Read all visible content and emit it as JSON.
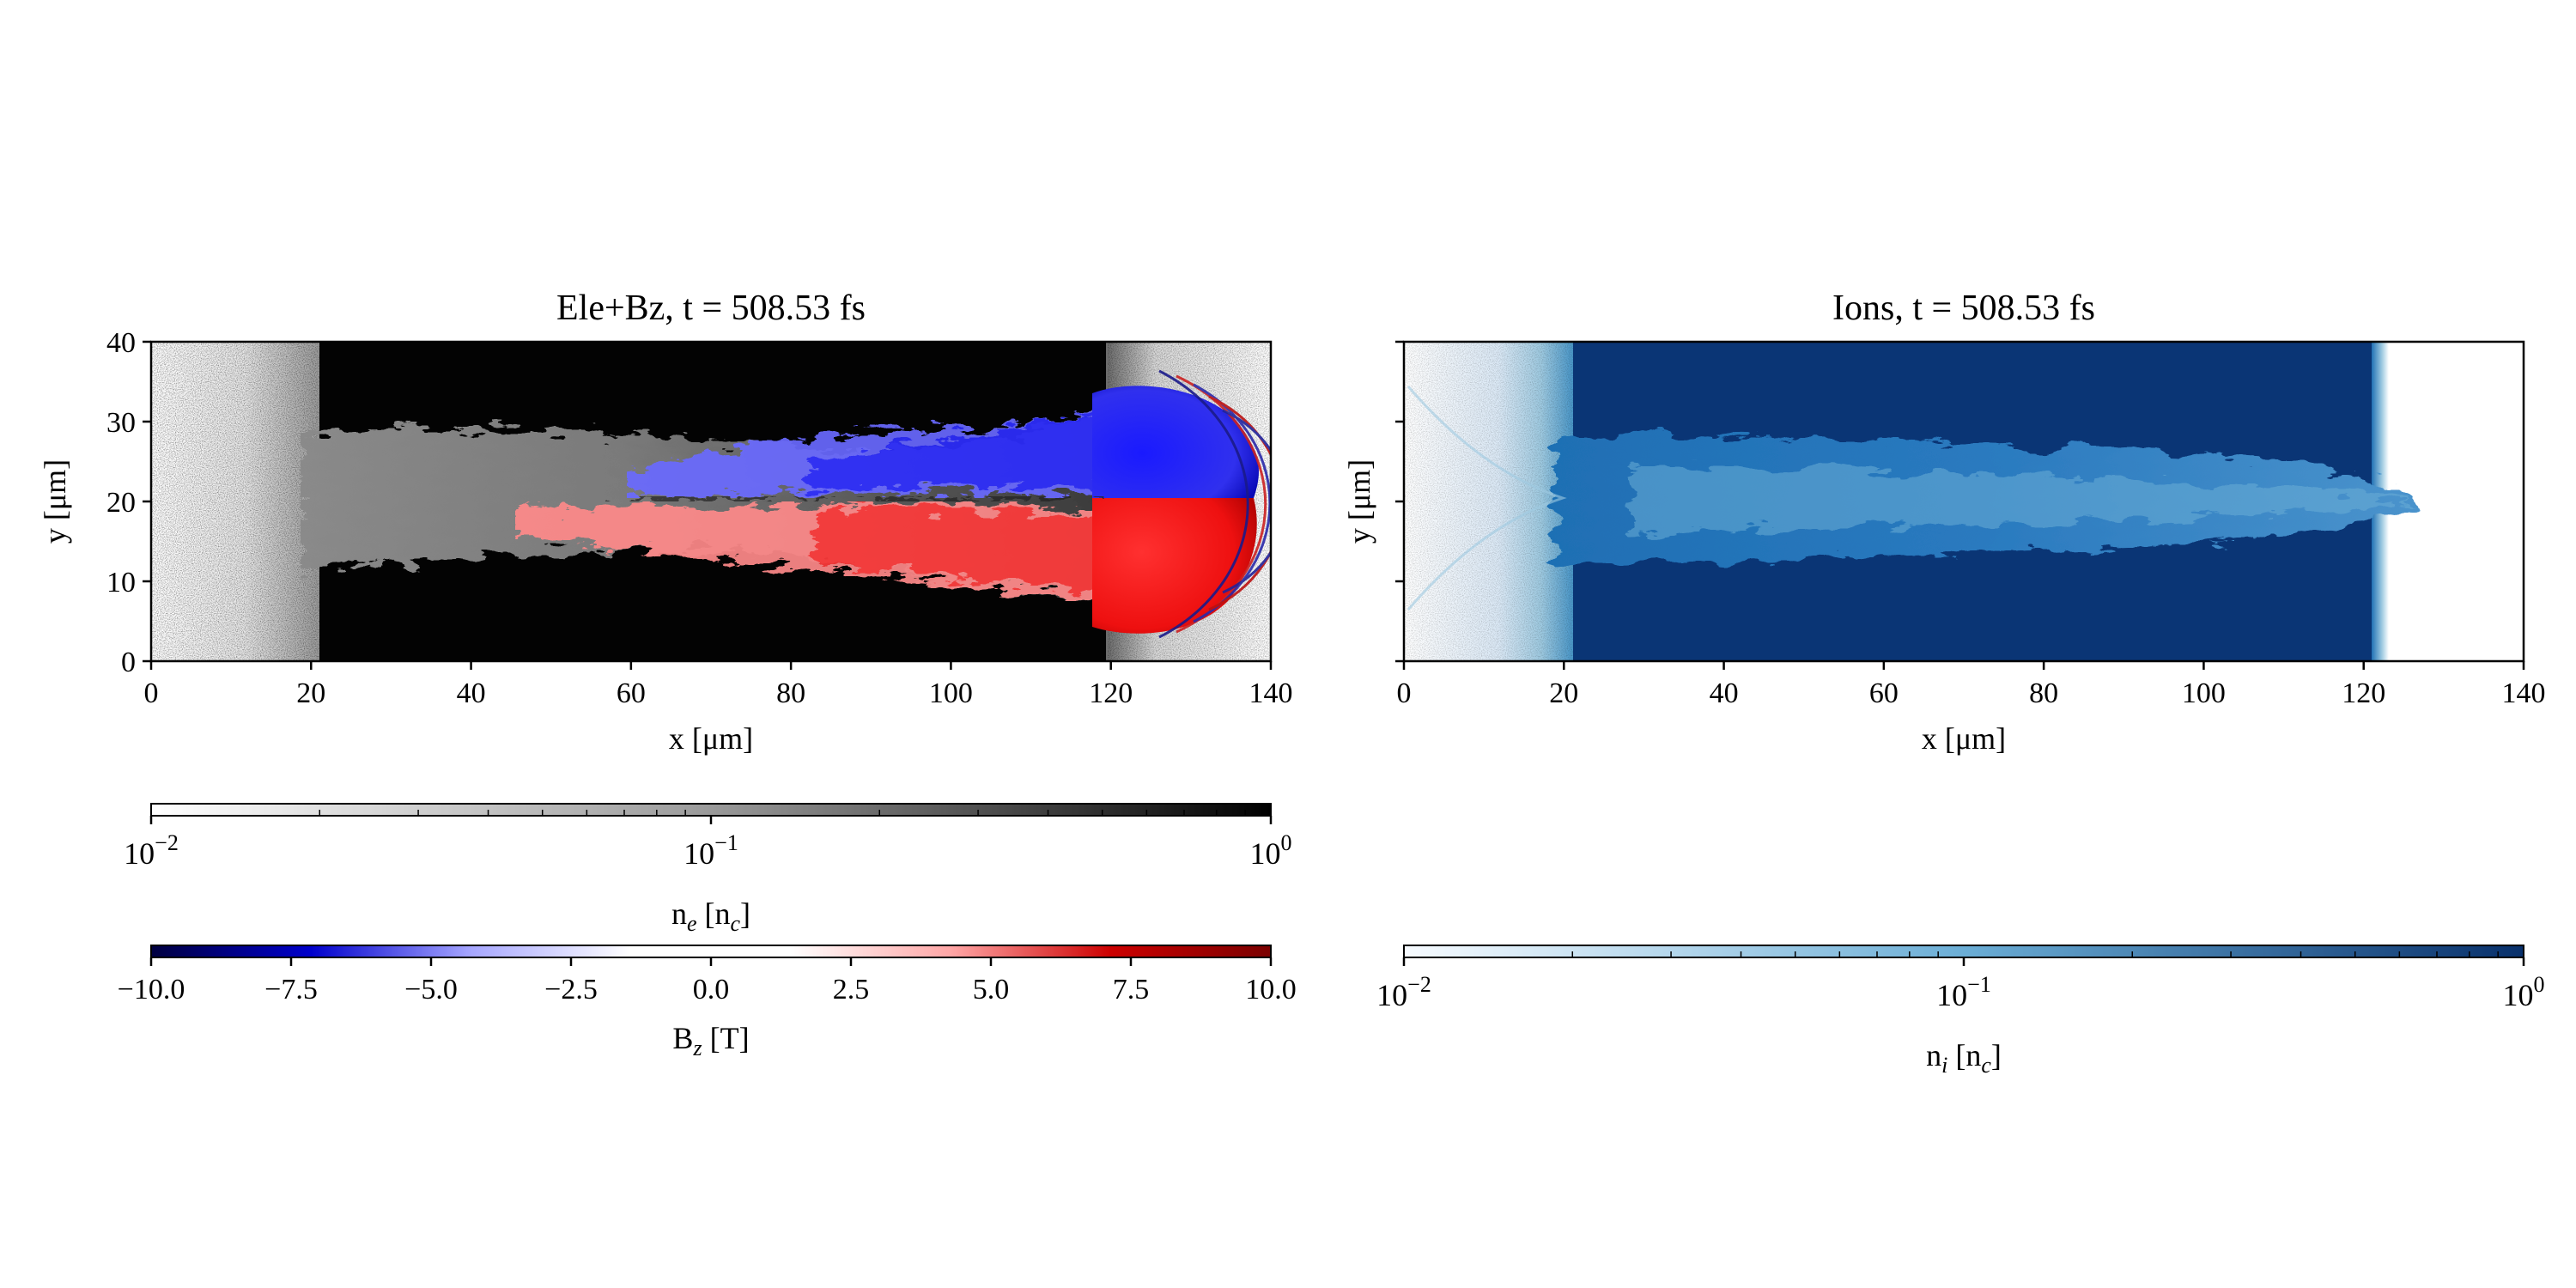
{
  "figure": {
    "panels": [
      {
        "id": "ele",
        "title": "Ele+Bz, t = 508.53 fs",
        "xlabel": "x [μm]",
        "ylabel": "y [μm]",
        "x_ticks": [
          "0",
          "20",
          "40",
          "60",
          "80",
          "100",
          "120",
          "140"
        ],
        "y_ticks": [
          "0",
          "10",
          "20",
          "30",
          "40"
        ],
        "show_y_tick_labels": true
      },
      {
        "id": "ions",
        "title": "Ions, t = 508.53 fs",
        "xlabel": "x [μm]",
        "ylabel": "y [μm]",
        "x_ticks": [
          "0",
          "20",
          "40",
          "60",
          "80",
          "100",
          "120",
          "140"
        ],
        "y_ticks": [
          "0",
          "10",
          "20",
          "30",
          "40"
        ],
        "show_y_tick_labels": false
      }
    ],
    "colorbars": [
      {
        "id": "ne",
        "label": "n_e [n_c]",
        "label_base": "n",
        "label_sub": "e",
        "label_unit_base": "n",
        "label_unit_sub": "c",
        "scale": "log",
        "range": [
          0.01,
          1
        ],
        "tick_labels": [
          "10−2",
          "10−1",
          "100"
        ],
        "colormap": [
          "#ffffff",
          "#9a9a9a",
          "#000000"
        ]
      },
      {
        "id": "bz",
        "label": "B_z [T]",
        "label_base": "B",
        "label_sub": "z",
        "label_unit": "T",
        "scale": "linear",
        "range": [
          -10,
          10
        ],
        "tick_labels": [
          "−10.0",
          "−7.5",
          "−5.0",
          "−2.5",
          "0.0",
          "2.5",
          "5.0",
          "7.5",
          "10.0"
        ],
        "colormap": [
          "#000040",
          "#0000cc",
          "#a6a6ff",
          "#ffffff",
          "#ffffff",
          "#ffa6a6",
          "#cc0000",
          "#7a0000"
        ]
      },
      {
        "id": "ni",
        "label": "n_i [n_c]",
        "label_base": "n",
        "label_sub": "i",
        "label_unit_base": "n",
        "label_unit_sub": "c",
        "scale": "log",
        "range": [
          0.01,
          1
        ],
        "tick_labels": [
          "10−2",
          "10−1",
          "100"
        ],
        "colormap": [
          "#f7fbff",
          "#6baed6",
          "#08306b"
        ]
      }
    ]
  },
  "chart_data": [
    {
      "type": "heatmap",
      "title": "Ele+Bz, t = 508.53 fs",
      "xlabel": "x [μm]",
      "ylabel": "y [μm]",
      "xlim": [
        0,
        140
      ],
      "ylim": [
        0,
        40
      ],
      "x_ticks": [
        0,
        20,
        40,
        60,
        80,
        100,
        120,
        140
      ],
      "y_ticks": [
        0,
        10,
        20,
        30,
        40
      ],
      "layers": [
        {
          "quantity": "n_e [n_c]",
          "scale": "log",
          "range": [
            0.01,
            1
          ],
          "colormap": "greys"
        },
        {
          "quantity": "B_z [T]",
          "scale": "linear",
          "range": [
            -10,
            10
          ],
          "colormap": "seismic-like (blue negative, red positive)"
        }
      ],
      "features": {
        "dense_target_x_range": [
          21,
          120
        ],
        "channel_y_range": [
          11,
          30
        ],
        "bz_negative_region": "y above 20, x 65–140",
        "bz_positive_region": "y below 20, x 48–138"
      },
      "grid": false
    },
    {
      "type": "heatmap",
      "title": "Ions, t = 508.53 fs",
      "xlabel": "x [μm]",
      "ylabel": "y [μm]",
      "xlim": [
        0,
        140
      ],
      "ylim": [
        0,
        40
      ],
      "x_ticks": [
        0,
        20,
        40,
        60,
        80,
        100,
        120,
        140
      ],
      "y_ticks": [
        0,
        10,
        20,
        30,
        40
      ],
      "quantity": "n_i [n_c]",
      "scale": "log",
      "range": [
        0.01,
        1
      ],
      "colormap": "blues",
      "features": {
        "dense_target_x_range": [
          21,
          121
        ],
        "channel_y_range": [
          11,
          28
        ],
        "channel_tip_x": 127
      },
      "grid": false
    }
  ]
}
